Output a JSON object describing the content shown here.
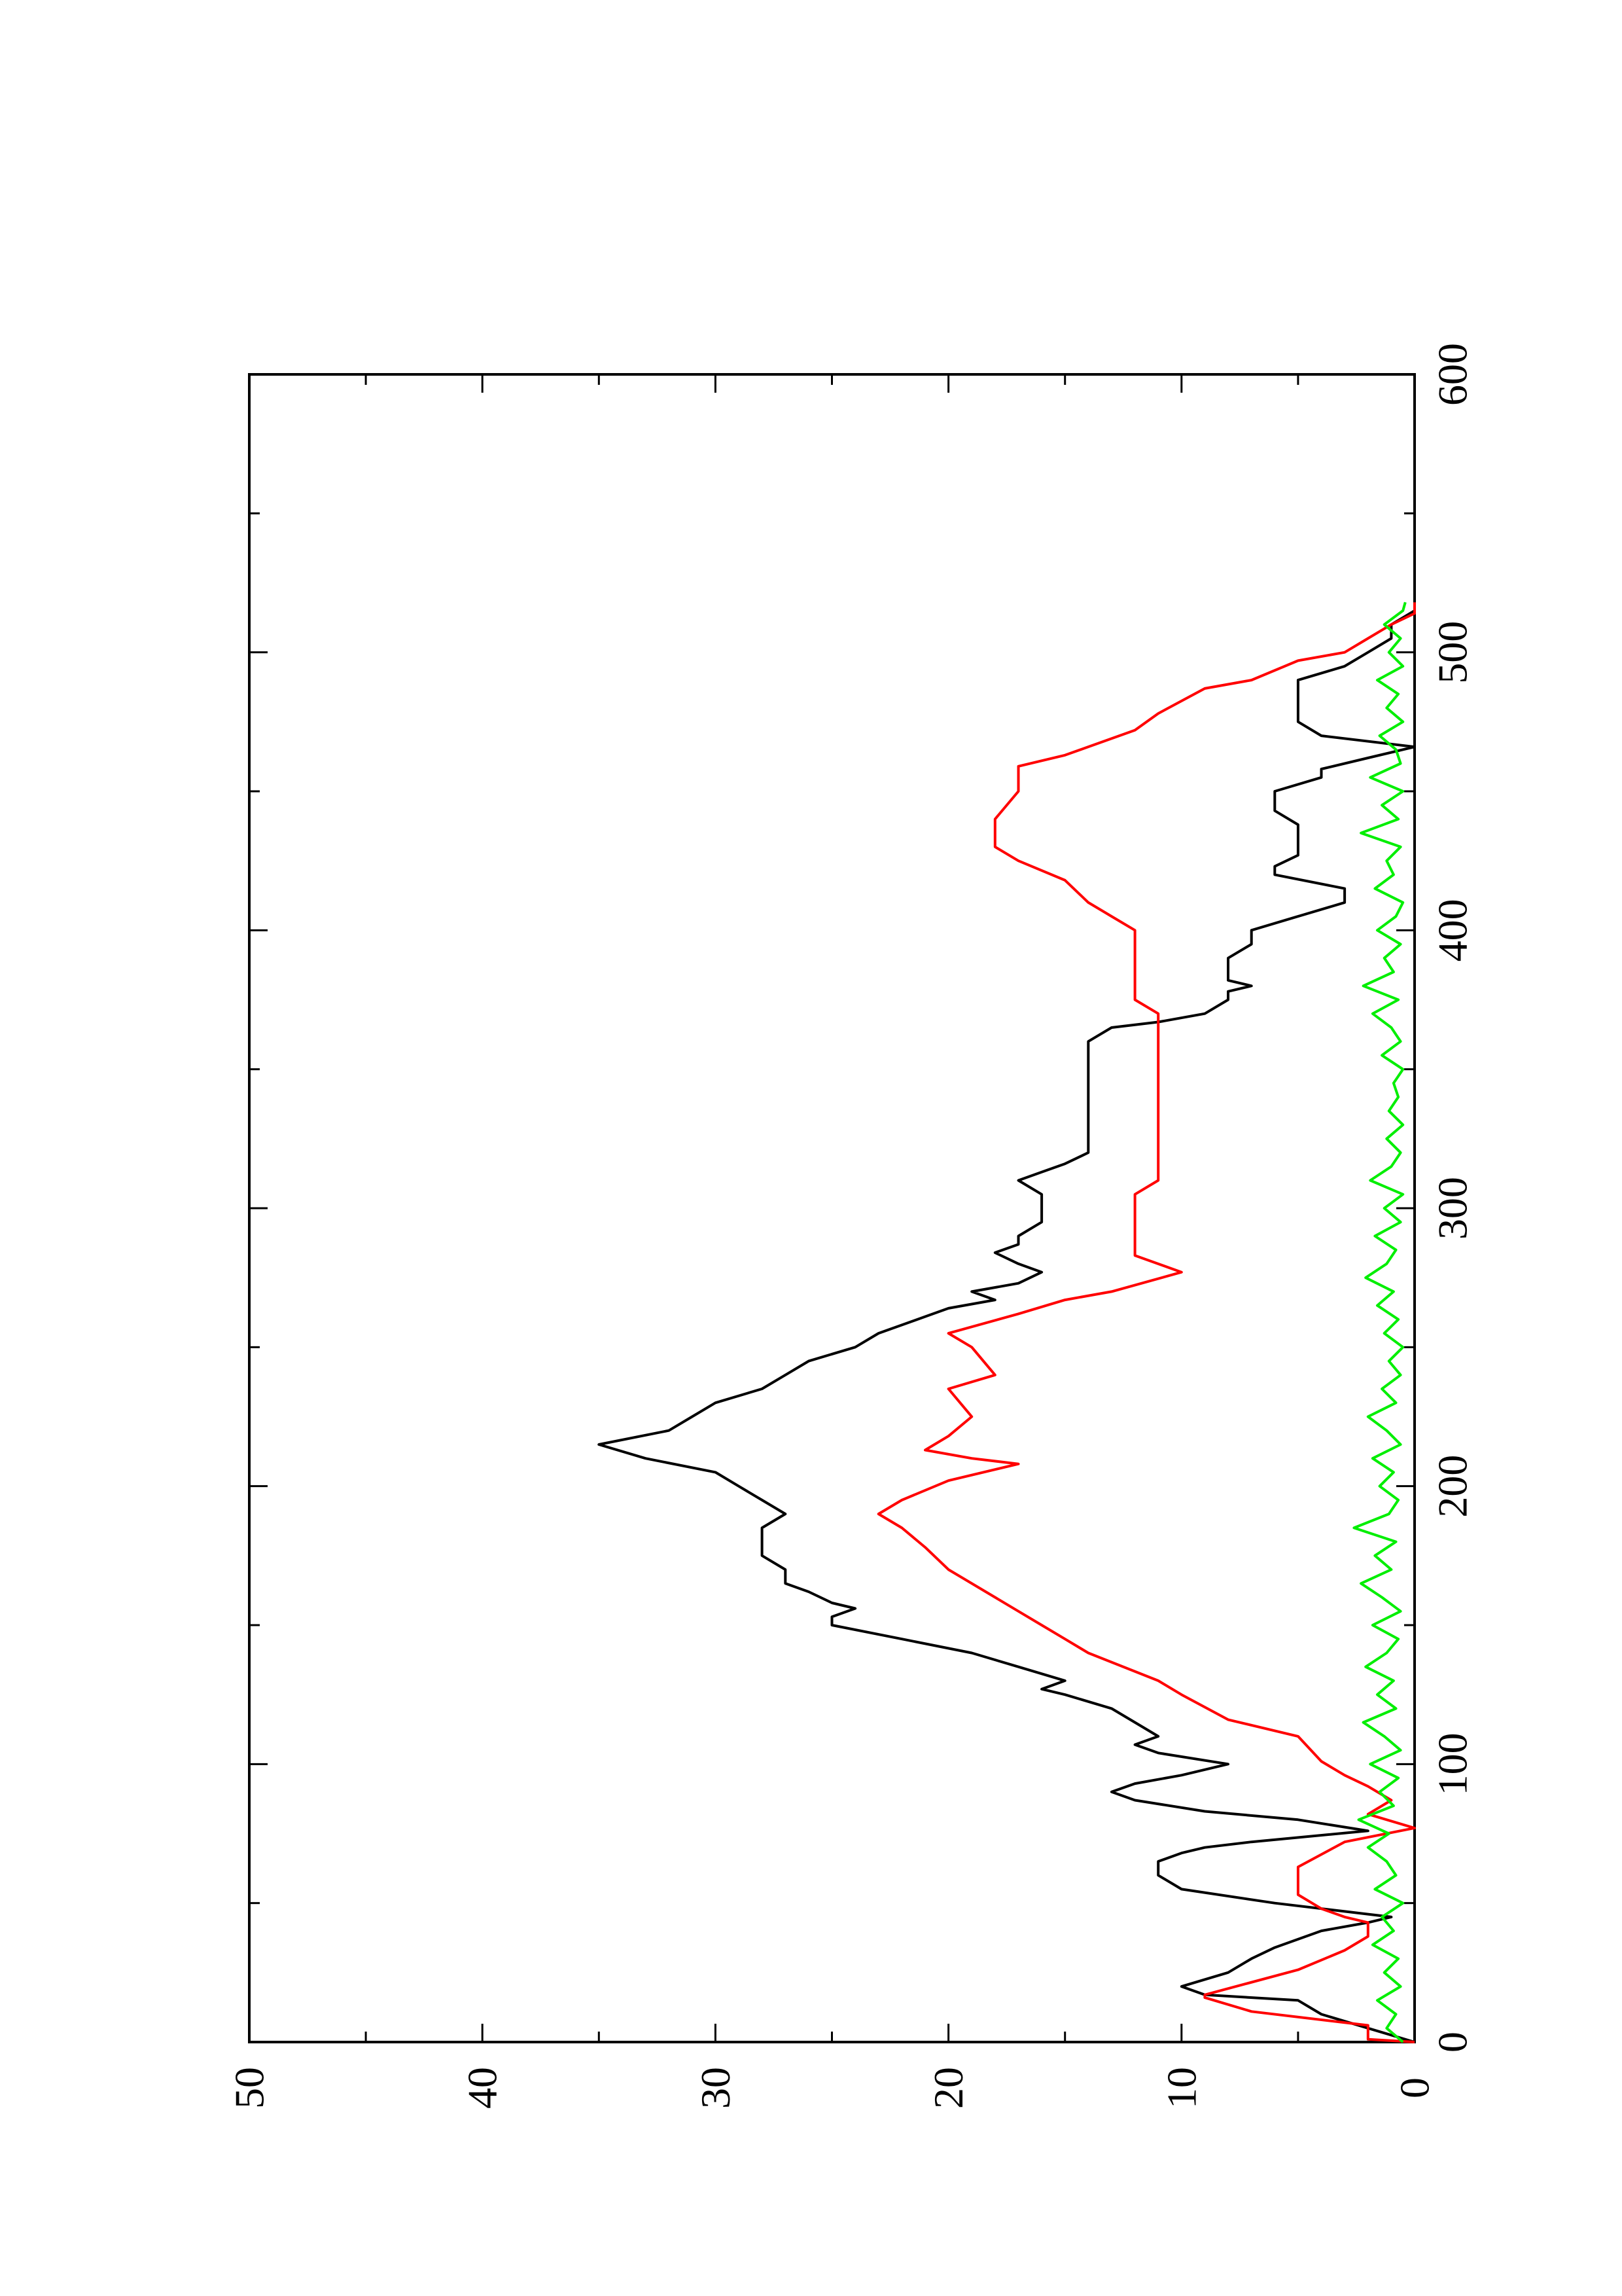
{
  "chart_data": {
    "type": "line",
    "orientation": "rotated-90-ccw",
    "title": "",
    "xlabel": "",
    "ylabel": "",
    "xlim": [
      0,
      600
    ],
    "ylim": [
      0,
      50
    ],
    "x_ticks": [
      0,
      100,
      200,
      300,
      400,
      500,
      600
    ],
    "y_ticks": [
      0,
      10,
      20,
      30,
      40,
      50
    ],
    "x_tick_labels": [
      "0",
      "100",
      "200",
      "300",
      "400",
      "500",
      "600"
    ],
    "y_tick_labels": [
      "0",
      "10",
      "20",
      "30",
      "40",
      "50"
    ],
    "grid": false,
    "legend": "none",
    "series": [
      {
        "color": "#000000",
        "x": [
          0,
          5,
          10,
          15,
          17,
          20,
          25,
          30,
          34,
          37,
          40,
          43,
          45,
          47,
          50,
          55,
          60,
          65,
          68,
          70,
          72,
          76,
          80,
          83,
          87,
          90,
          93,
          96,
          98,
          100,
          104,
          107,
          110,
          115,
          120,
          125,
          127,
          130,
          135,
          140,
          145,
          150,
          153,
          156,
          158,
          162,
          165,
          170,
          175,
          180,
          185,
          190,
          195,
          200,
          205,
          210,
          215,
          220,
          225,
          230,
          235,
          240,
          245,
          250,
          255,
          258,
          261,
          264,
          267,
          270,
          273,
          277,
          280,
          284,
          287,
          290,
          295,
          300,
          305,
          310,
          313,
          316,
          320,
          325,
          330,
          335,
          340,
          345,
          350,
          355,
          360,
          365,
          367,
          370,
          375,
          378,
          380,
          382,
          385,
          390,
          395,
          400,
          405,
          410,
          415,
          420,
          423,
          427,
          430,
          434,
          438,
          443,
          450,
          455,
          458,
          462,
          466,
          470,
          475,
          478,
          482,
          485,
          490,
          495,
          500,
          505,
          510,
          515,
          520
        ],
        "y": [
          0,
          2,
          4,
          5,
          9,
          10,
          8,
          7,
          6,
          5,
          4,
          2,
          1,
          3,
          6,
          10,
          11,
          11,
          10,
          9,
          7,
          2,
          5,
          9,
          12,
          13,
          12,
          10,
          9,
          8,
          11,
          12,
          11,
          12,
          13,
          15,
          16,
          15,
          17,
          19,
          22,
          25,
          25,
          24,
          25,
          26,
          27,
          27,
          28,
          28,
          28,
          27,
          28,
          29,
          30,
          33,
          35,
          32,
          31,
          30,
          28,
          27,
          26,
          24,
          23,
          22,
          21,
          20,
          18,
          19,
          17,
          16,
          17,
          18,
          17,
          17,
          16,
          16,
          16,
          17,
          16,
          15,
          14,
          14,
          14,
          14,
          14,
          14,
          14,
          14,
          14,
          13,
          11,
          9,
          8,
          8,
          7,
          8,
          8,
          8,
          7,
          7,
          5,
          3,
          3,
          6,
          6,
          5,
          5,
          5,
          5,
          6,
          6,
          4,
          4,
          2,
          0,
          4,
          5,
          5,
          5,
          5,
          5,
          3,
          2,
          1,
          1,
          0,
          0
        ]
      },
      {
        "color": "#ff0000",
        "x": [
          0,
          1,
          6,
          11,
          16,
          17,
          26,
          33,
          38,
          43,
          45,
          48,
          53,
          63,
          72,
          77,
          82,
          87,
          92,
          96,
          101,
          110,
          116,
          125,
          130,
          140,
          145,
          150,
          155,
          160,
          170,
          178,
          185,
          190,
          195,
          202,
          208,
          210,
          213,
          218,
          225,
          235,
          240,
          250,
          255,
          262,
          267,
          270,
          277,
          283,
          290,
          295,
          300,
          305,
          310,
          320,
          330,
          340,
          350,
          360,
          370,
          375,
          380,
          385,
          390,
          395,
          400,
          405,
          410,
          418,
          425,
          430,
          440,
          450,
          459,
          463,
          472,
          478,
          487,
          490,
          497,
          500,
          505,
          510,
          514,
          518
        ],
        "y": [
          0,
          2,
          2,
          7,
          9,
          9,
          5,
          3,
          2,
          2,
          3,
          4,
          5,
          5,
          3,
          0,
          2,
          1,
          2,
          3,
          4,
          5,
          8,
          10,
          11,
          14,
          15,
          16,
          17,
          18,
          20,
          21,
          22,
          23,
          22,
          20,
          17,
          19,
          21,
          20,
          19,
          20,
          18,
          19,
          20,
          17,
          15,
          13,
          10,
          12,
          12,
          12,
          12,
          12,
          11,
          11,
          11,
          11,
          11,
          11,
          11,
          12,
          12,
          12,
          12,
          12,
          12,
          13,
          14,
          15,
          17,
          18,
          18,
          17,
          17,
          15,
          12,
          11,
          9,
          7,
          5,
          3,
          2,
          1,
          0,
          0
        ]
      },
      {
        "color": "#00ee00",
        "x": [
          0,
          5,
          10,
          15,
          20,
          25,
          30,
          35,
          40,
          45,
          50,
          55,
          60,
          65,
          70,
          75,
          80,
          85,
          90,
          95,
          100,
          105,
          110,
          115,
          120,
          125,
          130,
          135,
          140,
          145,
          150,
          155,
          160,
          165,
          170,
          175,
          180,
          185,
          190,
          195,
          200,
          205,
          210,
          215,
          220,
          225,
          230,
          235,
          240,
          245,
          250,
          255,
          260,
          265,
          270,
          275,
          280,
          285,
          290,
          295,
          300,
          305,
          310,
          315,
          320,
          325,
          330,
          335,
          340,
          345,
          350,
          355,
          360,
          365,
          370,
          375,
          380,
          385,
          390,
          395,
          400,
          405,
          410,
          415,
          420,
          425,
          430,
          435,
          440,
          445,
          450,
          455,
          460,
          465,
          470,
          475,
          480,
          485,
          490,
          495,
          500,
          505,
          510,
          515,
          518
        ],
        "y": [
          0.5,
          1.2,
          0.8,
          1.6,
          0.6,
          1.3,
          0.7,
          1.8,
          0.9,
          1.4,
          0.5,
          1.7,
          0.8,
          1.2,
          2.0,
          1.1,
          2.4,
          0.9,
          1.5,
          0.7,
          1.9,
          0.6,
          1.3,
          2.2,
          0.8,
          1.6,
          0.9,
          2.1,
          1.2,
          0.7,
          1.8,
          0.6,
          1.4,
          2.3,
          1.0,
          1.7,
          0.8,
          2.6,
          1.1,
          0.7,
          1.5,
          0.9,
          1.8,
          0.6,
          1.2,
          2.0,
          0.8,
          1.4,
          0.6,
          1.1,
          0.5,
          1.3,
          0.7,
          1.6,
          0.9,
          2.1,
          1.2,
          0.8,
          1.7,
          0.6,
          1.3,
          0.5,
          1.9,
          1.0,
          0.6,
          1.2,
          0.5,
          1.1,
          0.7,
          0.9,
          0.5,
          1.4,
          0.6,
          1.0,
          1.8,
          0.7,
          2.2,
          0.9,
          1.3,
          0.6,
          1.6,
          0.8,
          0.5,
          1.7,
          0.9,
          1.2,
          0.6,
          2.3,
          0.7,
          1.4,
          0.5,
          1.9,
          0.6,
          0.8,
          1.5,
          0.5,
          1.2,
          0.7,
          1.6,
          0.5,
          1.1,
          0.6,
          1.3,
          0.5,
          0.4
        ]
      }
    ]
  }
}
